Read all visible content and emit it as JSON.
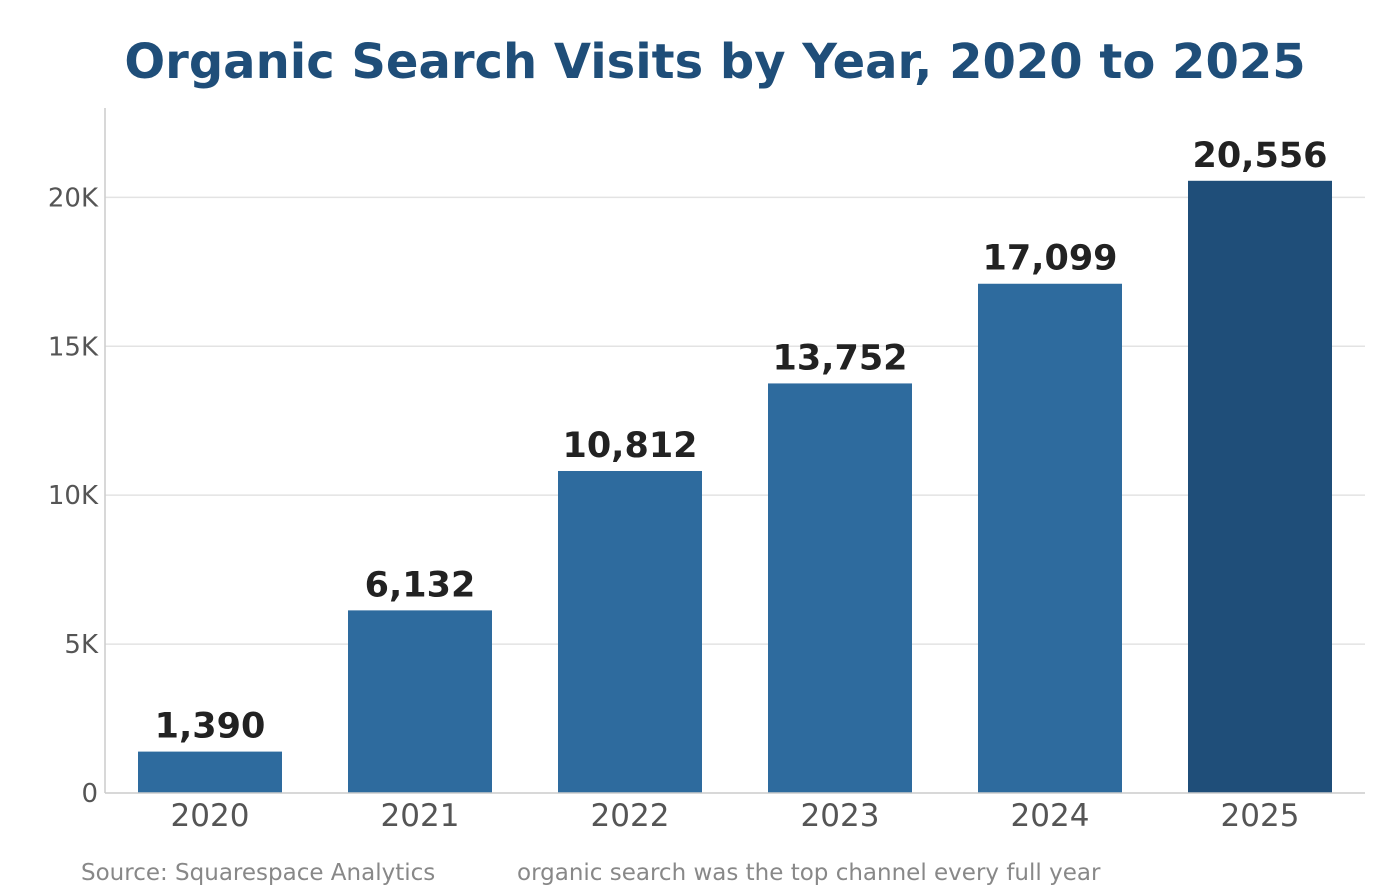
{
  "chart_data": {
    "type": "bar",
    "title": "Organic Search Visits by Year, 2020 to 2025",
    "categories": [
      "2020",
      "2021",
      "2022",
      "2023",
      "2024",
      "2025"
    ],
    "values": [
      1390,
      6132,
      10812,
      13752,
      17099,
      20556
    ],
    "value_labels": [
      "1,390",
      "6,132",
      "10,812",
      "13,752",
      "17,099",
      "20,556"
    ],
    "xlabel": "",
    "ylabel": "",
    "ylim": [
      0,
      23000
    ],
    "yticks": [
      0,
      5000,
      10000,
      15000,
      20000
    ],
    "ytick_labels": [
      "0",
      "5K",
      "10K",
      "15K",
      "20K"
    ],
    "grid": true,
    "colors": {
      "bar": "#2e6b9e",
      "highlight_bar": "#1f4e79",
      "title": "#1f4e79"
    },
    "highlight_index": 5
  },
  "footer": {
    "source": "Source: Squarespace Analytics",
    "note": "organic search was the top channel every full year"
  }
}
